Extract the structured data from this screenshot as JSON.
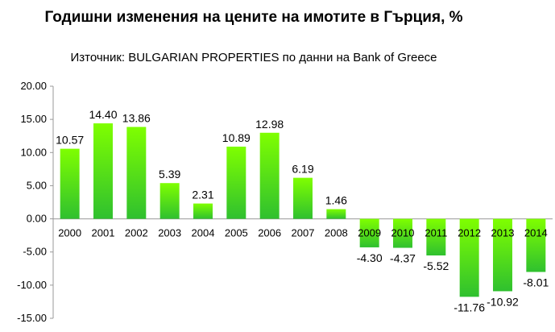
{
  "chart_data": {
    "type": "bar",
    "title": "Годишни изменения на цените на имотите в Гърция, %",
    "subtitle": "Източник: BULGARIAN PROPERTIES по данни на Bank of Greece",
    "categories": [
      "2000",
      "2001",
      "2002",
      "2003",
      "2004",
      "2005",
      "2006",
      "2007",
      "2008",
      "2009",
      "2010",
      "2011",
      "2012",
      "2013",
      "2014"
    ],
    "values": [
      10.57,
      14.4,
      13.86,
      5.39,
      2.31,
      10.89,
      12.98,
      6.19,
      1.46,
      -4.3,
      -4.37,
      -5.52,
      -11.76,
      -10.92,
      -8.01
    ],
    "data_labels": [
      "10.57",
      "14.40",
      "13.86",
      "5.39",
      "2.31",
      "10.89",
      "12.98",
      "6.19",
      "1.46",
      "-4.30",
      "-4.37",
      "-5.52",
      "-11.76",
      "-10.92",
      "-8.01"
    ],
    "yticks": [
      "20.00",
      "15.00",
      "10.00",
      "5.00",
      "0.00",
      "-5.00",
      "-10.00",
      "-15.00"
    ],
    "ylim": [
      -15,
      20
    ],
    "grid": false,
    "colors": {
      "bar_top": "#7fff00",
      "bar_bottom": "#2fc02f",
      "axis": "#999999"
    }
  }
}
